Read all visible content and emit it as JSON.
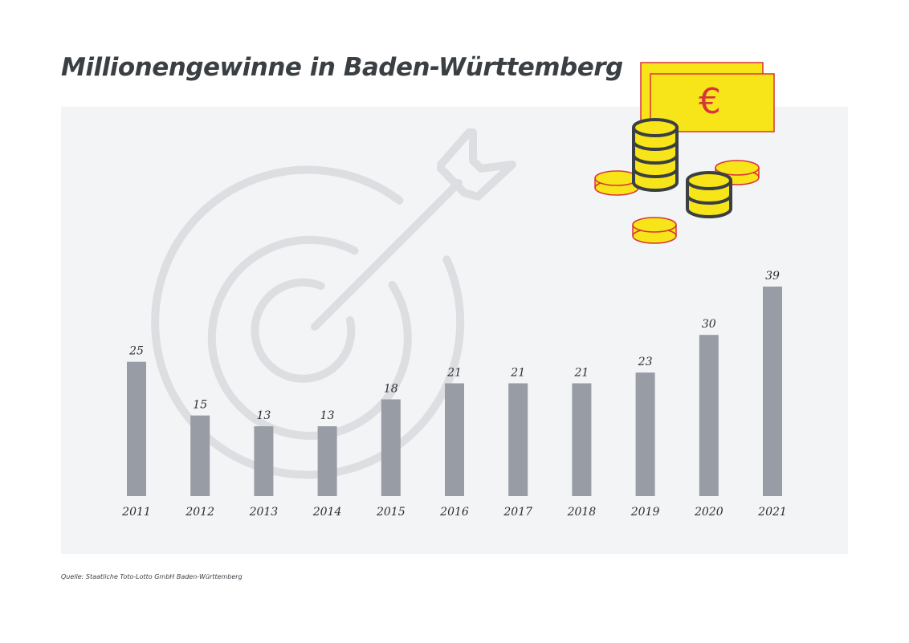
{
  "title": "Millionengewinne in Baden-Württemberg",
  "source": "Quelle: Staatliche Toto-Lotto GmbH Baden-Württemberg",
  "colors": {
    "bar": "#979ca5",
    "panel": "#f3f4f5",
    "target_watermark": "#dcdee1",
    "coin_fill": "#f7e51a",
    "coin_outline": "#3a3f44",
    "banknote_fill": "#f7e51a",
    "banknote_outline": "#d8343a"
  },
  "icons": [
    "target-arrow-icon",
    "euro-banknote-icon",
    "coin-stack-icon"
  ],
  "chart_data": {
    "type": "bar",
    "categories": [
      "2011",
      "2012",
      "2013",
      "2014",
      "2015",
      "2016",
      "2017",
      "2018",
      "2019",
      "2020",
      "2021"
    ],
    "values": [
      25,
      15,
      13,
      13,
      18,
      21,
      21,
      21,
      23,
      30,
      39
    ],
    "value_labels": [
      "25",
      "15",
      "13",
      "13",
      "18",
      "21",
      "21",
      "21",
      "23",
      "30",
      "39"
    ],
    "title": "Millionengewinne in Baden-Württemberg",
    "xlabel": "",
    "ylabel": "",
    "ylim": [
      0,
      39
    ],
    "grid": false,
    "legend": "none",
    "data_labels": "above bars"
  }
}
